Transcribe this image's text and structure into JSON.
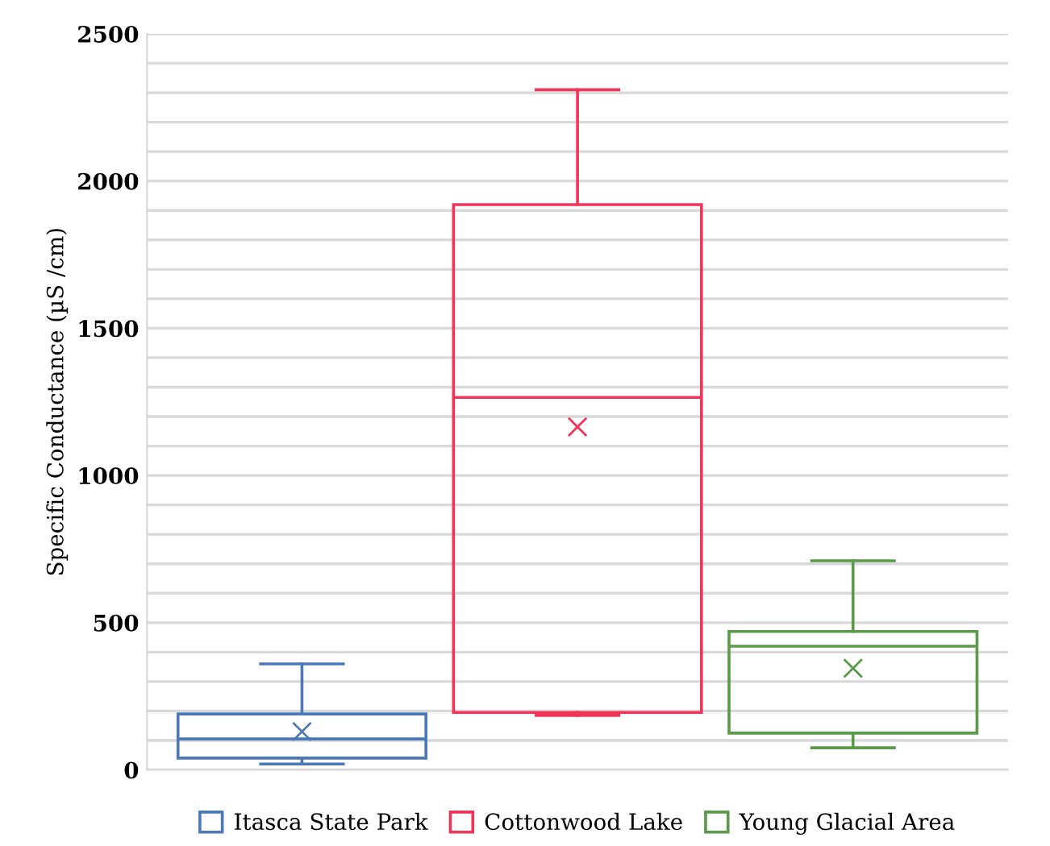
{
  "chart_data": {
    "type": "box",
    "ylabel": "Specific Conductance (µS /cm)",
    "categories": [
      null
    ],
    "series": [
      {
        "name": "Itasca State Park",
        "color": "#4a78b8",
        "boxes": [
          {
            "low": 20,
            "q1": 40,
            "median": 105,
            "q3": 190,
            "high": 360,
            "mean": 130
          }
        ]
      },
      {
        "name": "Cottonwood Lake",
        "color": "#f2345a",
        "boxes": [
          {
            "low": 185,
            "q1": 195,
            "median": 1265,
            "q3": 1920,
            "high": 2310,
            "mean": 1165
          }
        ]
      },
      {
        "name": "Young Glacial Area",
        "color": "#5a9a4a",
        "boxes": [
          {
            "low": 75,
            "q1": 125,
            "median": 420,
            "q3": 470,
            "high": 710,
            "mean": 345
          }
        ]
      }
    ],
    "ylim": [
      0,
      2500
    ],
    "yticks": [
      0,
      {
        "value": 100,
        "label": null
      },
      {
        "value": 200,
        "label": null
      },
      {
        "value": 300,
        "label": null
      },
      {
        "value": 400,
        "label": null
      },
      500,
      {
        "value": 600,
        "label": null
      },
      {
        "value": 700,
        "label": null
      },
      {
        "value": 800,
        "label": null
      },
      {
        "value": 900,
        "label": null
      },
      1000,
      {
        "value": 1100,
        "label": null
      },
      {
        "value": 1200,
        "label": null
      },
      {
        "value": 1300,
        "label": null
      },
      {
        "value": 1400,
        "label": null
      },
      1500,
      {
        "value": 1600,
        "label": null
      },
      {
        "value": 1700,
        "label": null
      },
      {
        "value": 1800,
        "label": null
      },
      {
        "value": 1900,
        "label": null
      },
      2000,
      {
        "value": 2100,
        "label": null
      },
      {
        "value": 2200,
        "label": null
      },
      {
        "value": 2300,
        "label": null
      },
      {
        "value": 2400,
        "label": null
      },
      2500
    ],
    "grid": "y",
    "legend": "bottom",
    "tick_labels": "y",
    "marker": "cross"
  }
}
